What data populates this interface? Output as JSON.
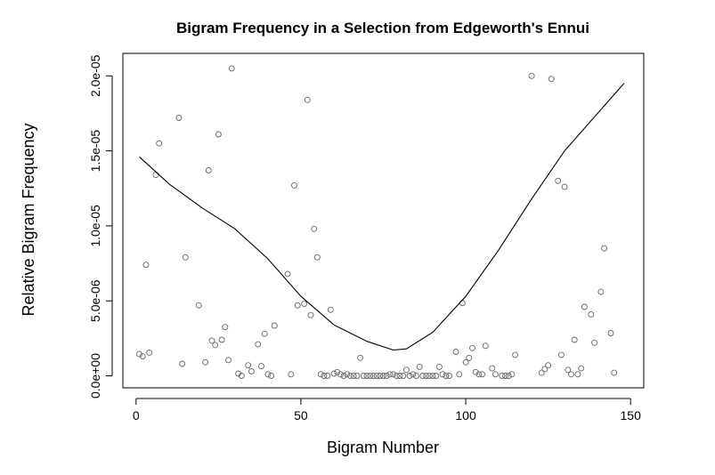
{
  "chart_data": {
    "type": "scatter",
    "title": "Bigram Frequency in a Selection from Edgeworth's Ennui",
    "xlabel": "Bigram Number",
    "ylabel": "Relative Bigram Frequency",
    "xlim": [
      -4,
      154
    ],
    "ylim": [
      -8e-07,
      2.15e-05
    ],
    "x_ticks": [
      0,
      50,
      100,
      150
    ],
    "x_tick_labels": [
      "0",
      "50",
      "100",
      "150"
    ],
    "y_ticks": [
      0,
      5e-06,
      1e-05,
      1.5e-05,
      2e-05
    ],
    "y_tick_labels": [
      "0.0e+00",
      "5.0e-06",
      "1.0e-05",
      "1.5e-05",
      "2.0e-05"
    ],
    "grid": false,
    "point_color": "#666666",
    "points": [
      [
        1,
        1.45e-06
      ],
      [
        2,
        1.3e-06
      ],
      [
        3,
        7.4e-06
      ],
      [
        4,
        1.55e-06
      ],
      [
        6,
        1.34e-05
      ],
      [
        7,
        1.55e-05
      ],
      [
        13,
        1.72e-05
      ],
      [
        14,
        8e-07
      ],
      [
        15,
        7.9e-06
      ],
      [
        19,
        4.7e-06
      ],
      [
        21,
        9e-07
      ],
      [
        22,
        1.37e-05
      ],
      [
        23,
        2.35e-06
      ],
      [
        24,
        2.05e-06
      ],
      [
        25,
        1.61e-05
      ],
      [
        26,
        2.4e-06
      ],
      [
        27,
        3.25e-06
      ],
      [
        28,
        1.05e-06
      ],
      [
        29,
        2.05e-05
      ],
      [
        31,
        1.5e-07
      ],
      [
        32,
        0
      ],
      [
        34,
        7e-07
      ],
      [
        35,
        3e-07
      ],
      [
        37,
        2.1e-06
      ],
      [
        38,
        6.5e-07
      ],
      [
        39,
        2.8e-06
      ],
      [
        40,
        1e-07
      ],
      [
        41,
        0
      ],
      [
        42,
        3.35e-06
      ],
      [
        46,
        6.8e-06
      ],
      [
        47,
        1e-07
      ],
      [
        48,
        1.27e-05
      ],
      [
        49,
        4.7e-06
      ],
      [
        51,
        4.8e-06
      ],
      [
        52,
        1.84e-05
      ],
      [
        53,
        4.05e-06
      ],
      [
        54,
        9.8e-06
      ],
      [
        55,
        7.9e-06
      ],
      [
        56,
        1e-07
      ],
      [
        57,
        0
      ],
      [
        58,
        0
      ],
      [
        59,
        4.4e-06
      ],
      [
        60,
        1.5e-07
      ],
      [
        61,
        2.5e-07
      ],
      [
        62,
        1e-07
      ],
      [
        63,
        0
      ],
      [
        64,
        1e-07
      ],
      [
        65,
        0
      ],
      [
        66,
        0
      ],
      [
        67,
        0
      ],
      [
        68,
        1.2e-06
      ],
      [
        69,
        0
      ],
      [
        70,
        0
      ],
      [
        71,
        0
      ],
      [
        72,
        0
      ],
      [
        73,
        0
      ],
      [
        74,
        0
      ],
      [
        75,
        0
      ],
      [
        76,
        0
      ],
      [
        77,
        1e-07
      ],
      [
        78,
        1e-07
      ],
      [
        79,
        0
      ],
      [
        80,
        0
      ],
      [
        81,
        0
      ],
      [
        82,
        4e-07
      ],
      [
        83,
        0
      ],
      [
        84,
        1e-07
      ],
      [
        85,
        0
      ],
      [
        86,
        6e-07
      ],
      [
        87,
        0
      ],
      [
        88,
        0
      ],
      [
        89,
        0
      ],
      [
        90,
        0
      ],
      [
        91,
        0
      ],
      [
        92,
        6e-07
      ],
      [
        93,
        1e-07
      ],
      [
        94,
        0
      ],
      [
        95,
        0
      ],
      [
        97,
        1.6e-06
      ],
      [
        98,
        1e-07
      ],
      [
        99,
        4.85e-06
      ],
      [
        100,
        9e-07
      ],
      [
        101,
        1.2e-06
      ],
      [
        102,
        1.85e-06
      ],
      [
        103,
        2.5e-07
      ],
      [
        104,
        1e-07
      ],
      [
        105,
        1e-07
      ],
      [
        106,
        2e-06
      ],
      [
        108,
        5e-07
      ],
      [
        109,
        1e-07
      ],
      [
        111,
        0
      ],
      [
        112,
        0
      ],
      [
        113,
        0
      ],
      [
        114,
        1e-07
      ],
      [
        115,
        1.4e-06
      ],
      [
        120,
        2e-05
      ],
      [
        123,
        2e-07
      ],
      [
        124,
        4.5e-07
      ],
      [
        125,
        7e-07
      ],
      [
        126,
        1.98e-05
      ],
      [
        128,
        1.3e-05
      ],
      [
        129,
        1.4e-06
      ],
      [
        130,
        1.26e-05
      ],
      [
        131,
        4e-07
      ],
      [
        132,
        1e-07
      ],
      [
        133,
        2.4e-06
      ],
      [
        134,
        1e-07
      ],
      [
        135,
        5e-07
      ],
      [
        136,
        4.6e-06
      ],
      [
        138,
        4.1e-06
      ],
      [
        139,
        2.2e-06
      ],
      [
        141,
        5.6e-06
      ],
      [
        142,
        8.5e-06
      ],
      [
        144,
        2.85e-06
      ],
      [
        145,
        2e-07
      ]
    ],
    "fit_line": {
      "x": [
        1,
        10,
        20,
        30,
        40,
        50,
        60,
        70,
        78,
        82,
        90,
        100,
        110,
        120,
        130,
        140,
        148
      ],
      "y": [
        1.46e-05,
        1.28e-05,
        1.12e-05,
        9.8e-06,
        7.8e-06,
        5.3e-06,
        3.4e-06,
        2.3e-06,
        1.72e-06,
        1.8e-06,
        2.9e-06,
        5.3e-06,
        8.4e-06,
        1.18e-05,
        1.5e-05,
        1.75e-05,
        1.95e-05
      ]
    }
  }
}
